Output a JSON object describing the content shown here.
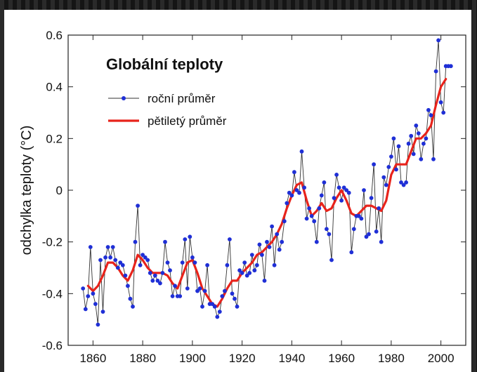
{
  "chart_data": {
    "type": "line",
    "title": "Globální teploty",
    "ylabel": "odchylka teploty  (°C)",
    "xlabel": "",
    "xlim": [
      1850,
      2010
    ],
    "ylim": [
      -0.6,
      0.6
    ],
    "xticks": [
      1860,
      1880,
      1900,
      1920,
      1940,
      1960,
      1980,
      2000
    ],
    "yticks": [
      -0.6,
      -0.4,
      -0.2,
      0,
      0.2,
      0.4,
      0.6
    ],
    "ytick_labels": [
      "-0.6",
      "-0.4",
      "-0.2",
      "0",
      "0.2",
      "0.4",
      "0.6"
    ],
    "legend_position": "top-left",
    "grid": false,
    "series": [
      {
        "name": "roční průměr",
        "color": "#1f2fd6",
        "marker": "dot",
        "x": [
          1856,
          1857,
          1858,
          1859,
          1860,
          1861,
          1862,
          1863,
          1864,
          1865,
          1866,
          1867,
          1868,
          1869,
          1870,
          1871,
          1872,
          1873,
          1874,
          1875,
          1876,
          1877,
          1878,
          1879,
          1880,
          1881,
          1882,
          1883,
          1884,
          1885,
          1886,
          1887,
          1888,
          1889,
          1890,
          1891,
          1892,
          1893,
          1894,
          1895,
          1896,
          1897,
          1898,
          1899,
          1900,
          1901,
          1902,
          1903,
          1904,
          1905,
          1906,
          1907,
          1908,
          1909,
          1910,
          1911,
          1912,
          1913,
          1914,
          1915,
          1916,
          1917,
          1918,
          1919,
          1920,
          1921,
          1922,
          1923,
          1924,
          1925,
          1926,
          1927,
          1928,
          1929,
          1930,
          1931,
          1932,
          1933,
          1934,
          1935,
          1936,
          1937,
          1938,
          1939,
          1940,
          1941,
          1942,
          1943,
          1944,
          1945,
          1946,
          1947,
          1948,
          1949,
          1950,
          1951,
          1952,
          1953,
          1954,
          1955,
          1956,
          1957,
          1958,
          1959,
          1960,
          1961,
          1962,
          1963,
          1964,
          1965,
          1966,
          1967,
          1968,
          1969,
          1970,
          1971,
          1972,
          1973,
          1974,
          1975,
          1976,
          1977,
          1978,
          1979,
          1980,
          1981,
          1982,
          1983,
          1984,
          1985,
          1986,
          1987,
          1988,
          1989,
          1990,
          1991,
          1992,
          1993,
          1994,
          1995,
          1996,
          1997,
          1998,
          1999,
          2000,
          2001,
          2002,
          2003,
          2004
        ],
        "values": [
          -0.38,
          -0.46,
          -0.41,
          -0.22,
          -0.4,
          -0.44,
          -0.52,
          -0.27,
          -0.47,
          -0.26,
          -0.22,
          -0.26,
          -0.22,
          -0.27,
          -0.3,
          -0.28,
          -0.29,
          -0.33,
          -0.37,
          -0.42,
          -0.45,
          -0.2,
          -0.06,
          -0.29,
          -0.25,
          -0.26,
          -0.27,
          -0.32,
          -0.35,
          -0.33,
          -0.35,
          -0.36,
          -0.32,
          -0.2,
          -0.28,
          -0.31,
          -0.41,
          -0.37,
          -0.41,
          -0.41,
          -0.28,
          -0.19,
          -0.38,
          -0.18,
          -0.26,
          -0.28,
          -0.39,
          -0.38,
          -0.45,
          -0.39,
          -0.29,
          -0.44,
          -0.44,
          -0.45,
          -0.49,
          -0.47,
          -0.41,
          -0.39,
          -0.29,
          -0.19,
          -0.4,
          -0.42,
          -0.45,
          -0.31,
          -0.32,
          -0.28,
          -0.33,
          -0.32,
          -0.25,
          -0.31,
          -0.29,
          -0.21,
          -0.25,
          -0.35,
          -0.2,
          -0.22,
          -0.14,
          -0.29,
          -0.17,
          -0.23,
          -0.2,
          -0.12,
          -0.05,
          -0.01,
          -0.02,
          0.07,
          0.0,
          -0.01,
          0.15,
          0.01,
          -0.11,
          -0.07,
          -0.1,
          -0.12,
          -0.2,
          -0.07,
          -0.02,
          0.03,
          -0.15,
          -0.17,
          -0.27,
          -0.03,
          0.06,
          0.01,
          -0.04,
          0.01,
          0.0,
          -0.01,
          -0.24,
          -0.15,
          -0.1,
          -0.1,
          -0.11,
          0.0,
          -0.18,
          -0.17,
          -0.03,
          0.1,
          -0.16,
          -0.07,
          -0.2,
          0.05,
          0.02,
          0.09,
          0.13,
          0.2,
          0.08,
          0.17,
          0.03,
          0.02,
          0.03,
          0.18,
          0.21,
          0.14,
          0.25,
          0.22,
          0.12,
          0.18,
          0.2,
          0.31,
          0.29,
          0.12,
          0.46,
          0.58,
          0.34,
          0.3,
          0.48,
          0.48,
          0.48
        ]
      },
      {
        "name": "pětiletý průměr",
        "color": "#e8231b",
        "marker": "none",
        "x": [
          1858,
          1860,
          1862,
          1864,
          1866,
          1868,
          1870,
          1872,
          1874,
          1876,
          1878,
          1880,
          1882,
          1884,
          1886,
          1888,
          1890,
          1892,
          1894,
          1896,
          1898,
          1900,
          1902,
          1904,
          1906,
          1908,
          1910,
          1912,
          1914,
          1916,
          1918,
          1920,
          1922,
          1924,
          1926,
          1928,
          1930,
          1932,
          1934,
          1936,
          1938,
          1940,
          1942,
          1944,
          1946,
          1948,
          1950,
          1952,
          1954,
          1956,
          1958,
          1960,
          1962,
          1964,
          1966,
          1968,
          1970,
          1972,
          1974,
          1976,
          1978,
          1980,
          1982,
          1984,
          1986,
          1988,
          1990,
          1992,
          1994,
          1996,
          1998,
          2000,
          2002
        ],
        "values": [
          -0.37,
          -0.39,
          -0.37,
          -0.33,
          -0.28,
          -0.28,
          -0.3,
          -0.33,
          -0.35,
          -0.31,
          -0.25,
          -0.27,
          -0.3,
          -0.32,
          -0.32,
          -0.32,
          -0.33,
          -0.36,
          -0.38,
          -0.33,
          -0.28,
          -0.27,
          -0.32,
          -0.38,
          -0.41,
          -0.44,
          -0.45,
          -0.42,
          -0.38,
          -0.35,
          -0.35,
          -0.32,
          -0.3,
          -0.28,
          -0.25,
          -0.24,
          -0.22,
          -0.2,
          -0.17,
          -0.13,
          -0.07,
          -0.02,
          0.02,
          0.03,
          -0.04,
          -0.1,
          -0.08,
          -0.05,
          -0.08,
          -0.07,
          -0.03,
          0.0,
          -0.04,
          -0.09,
          -0.1,
          -0.08,
          -0.06,
          -0.06,
          -0.07,
          -0.08,
          -0.04,
          0.06,
          0.1,
          0.1,
          0.1,
          0.15,
          0.2,
          0.2,
          0.22,
          0.25,
          0.33,
          0.4,
          0.43
        ]
      }
    ]
  }
}
